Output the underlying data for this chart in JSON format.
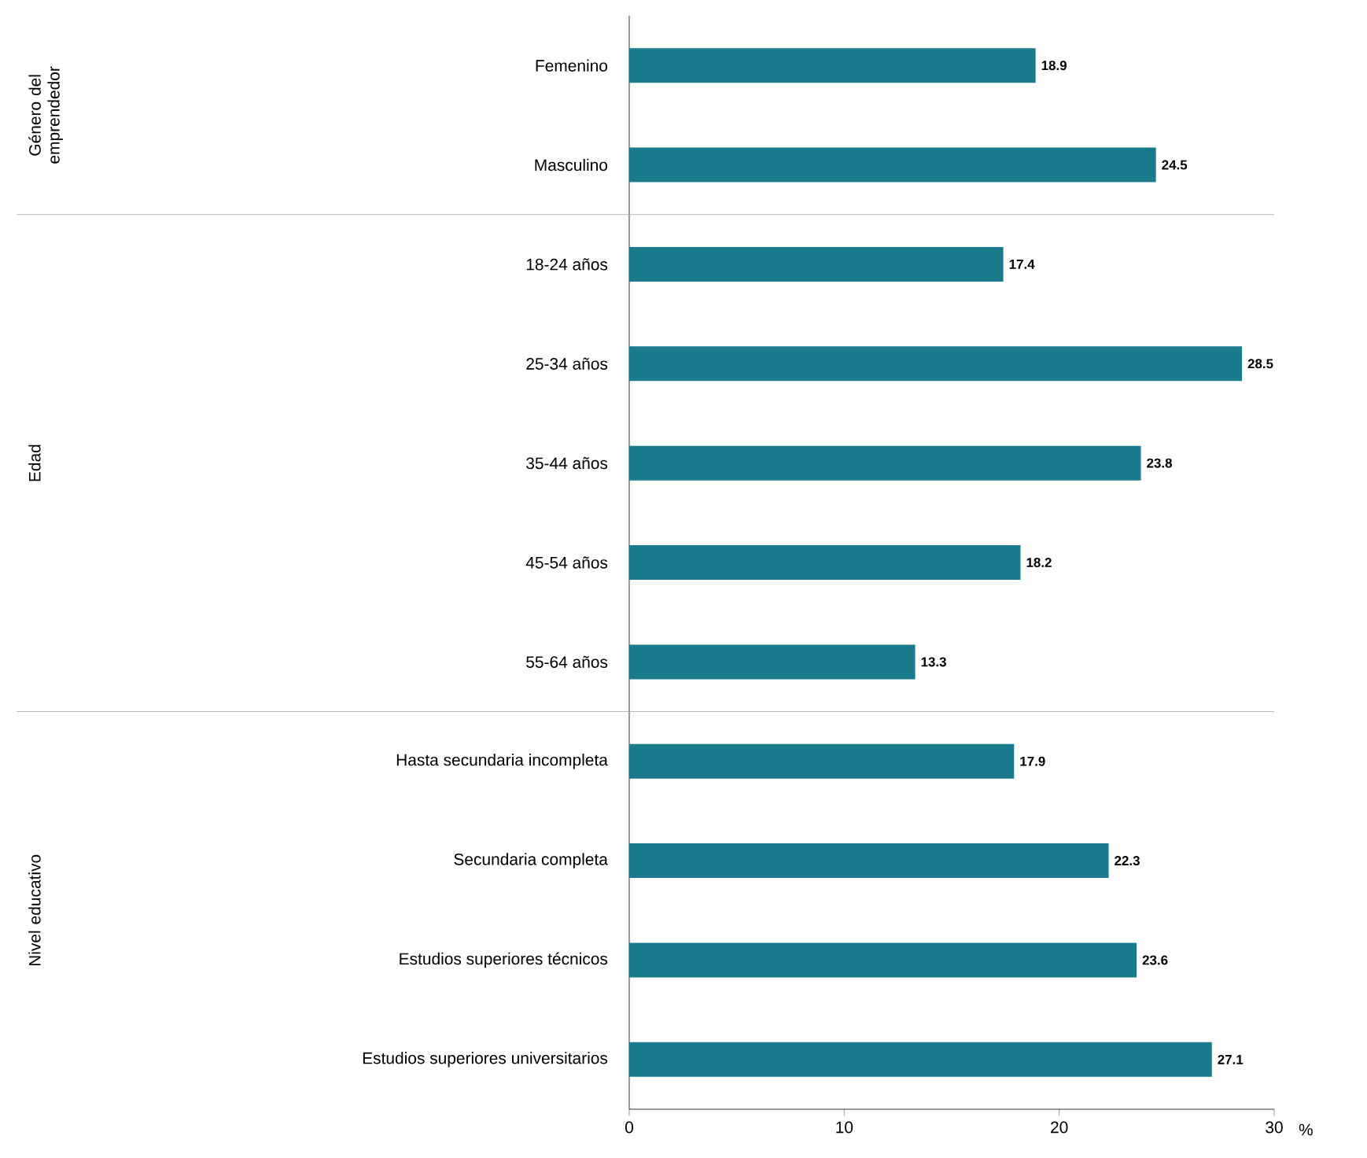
{
  "chart_data": {
    "type": "bar",
    "orientation": "horizontal",
    "categories": [
      "Femenino",
      "Masculino",
      "18-24 años",
      "25-34 años",
      "35-44 años",
      "45-54 años",
      "55-64 años",
      "Hasta secundaria incompleta",
      "Secundaria completa",
      "Estudios superiores técnicos",
      "Estudios superiores universitarios"
    ],
    "values": [
      18.9,
      24.5,
      17.4,
      28.5,
      23.8,
      18.2,
      13.3,
      17.9,
      22.3,
      23.6,
      27.1
    ],
    "color": "#1b7a8c",
    "xlim": [
      0,
      30
    ],
    "xticks": [
      0,
      10,
      20,
      30
    ],
    "xlabel": "%",
    "data_labels": true,
    "grid": false,
    "annotations": [
      "Género del emprendedor",
      "Edad",
      "Nivel educativo"
    ]
  }
}
